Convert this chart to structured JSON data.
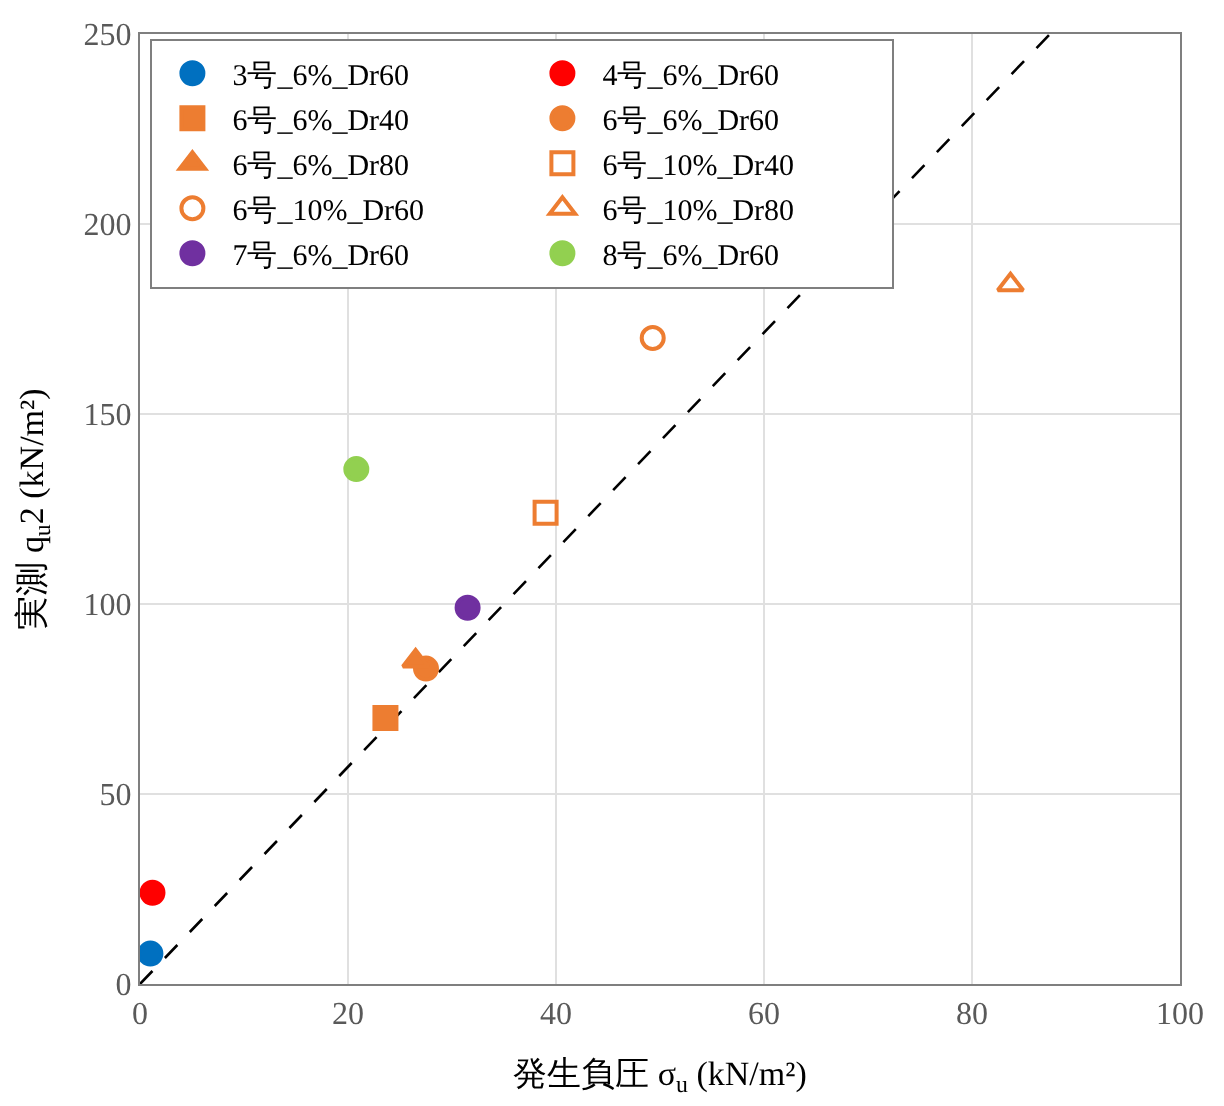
{
  "chart_data": {
    "type": "scatter",
    "xlabel": "発生負圧 σ$_{u}$ (kN/m²)",
    "ylabel": "実測 q$_{u}$2 (kN/m²)",
    "xlim": [
      0,
      100
    ],
    "ylim": [
      0,
      250
    ],
    "xticks": [
      0,
      20,
      40,
      60,
      80,
      100
    ],
    "yticks": [
      0,
      50,
      100,
      150,
      200,
      250
    ],
    "grid": true,
    "legend": "top left",
    "series": [
      {
        "type": "line",
        "color": "#000000",
        "line_style": "dashed",
        "marker": "none",
        "x": [
          0,
          87.5
        ],
        "values": [
          0,
          250
        ]
      },
      {
        "name": "3号_6%_Dr60",
        "color": "#0070c0",
        "marker": "circle",
        "x": [
          1.0
        ],
        "values": [
          8
        ]
      },
      {
        "name": "4号_6%_Dr60",
        "color": "#ff0000",
        "marker": "circle",
        "x": [
          1.2
        ],
        "values": [
          24
        ]
      },
      {
        "name": "6号_6%_Dr40",
        "color": "#ed7d31",
        "marker": "square",
        "x": [
          23.6
        ],
        "values": [
          70
        ]
      },
      {
        "name": "6号_6%_Dr60",
        "color": "#ed7d31",
        "marker": "circle",
        "x": [
          27.5
        ],
        "values": [
          83
        ]
      },
      {
        "name": "6号_6%_Dr80",
        "color": "#ed7d31",
        "marker": "triangle",
        "x": [
          26.5
        ],
        "values": [
          85
        ]
      },
      {
        "name": "6号_10%_Dr40",
        "color": "#ed7d31",
        "marker": "square-open",
        "x": [
          39
        ],
        "values": [
          124
        ]
      },
      {
        "name": "6号_10%_Dr60",
        "color": "#ed7d31",
        "marker": "circle-open",
        "x": [
          49.3
        ],
        "values": [
          170
        ]
      },
      {
        "name": "6号_10%_Dr80",
        "color": "#ed7d31",
        "marker": "triangle-open",
        "x": [
          83.7
        ],
        "values": [
          184
        ]
      },
      {
        "name": "7号_6%_Dr60",
        "color": "#7030a0",
        "marker": "circle",
        "x": [
          31.5
        ],
        "values": [
          99
        ]
      },
      {
        "name": "8号_6%_Dr60",
        "color": "#92d050",
        "marker": "circle",
        "x": [
          20.8
        ],
        "values": [
          135.5
        ]
      }
    ]
  }
}
